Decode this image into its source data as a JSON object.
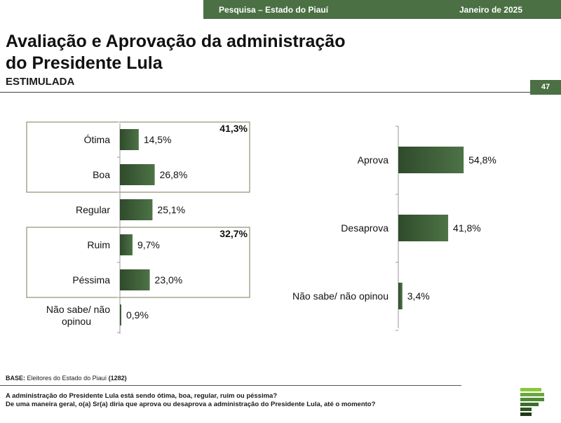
{
  "header": {
    "survey": "Pesquisa – Estado do Piauí",
    "date": "Janeiro de 2025",
    "page_number": "47"
  },
  "title_line1": "Avaliação e Aprovação da administração",
  "title_line2": "do Presidente Lula",
  "subtitle": "ESTIMULADA",
  "footer": {
    "base_label": "BASE:",
    "base_text": " Eleitores do Estado do Piauí ",
    "base_n": "(1282)",
    "question1": "A administração do Presidente Lula está sendo ótima, boa, regular, ruim ou péssima?",
    "question2": "De uma maneira geral, o(a) Sr(a) diria que aprova ou desaprova a administração do Presidente Lula, até o momento?"
  },
  "chart_data": [
    {
      "type": "bar",
      "orientation": "horizontal",
      "categories": [
        "Ótima",
        "Boa",
        "Regular",
        "Ruim",
        "Péssima",
        "Não sabe/ não opinou"
      ],
      "values": [
        14.5,
        26.8,
        25.1,
        9.7,
        23.0,
        0.9
      ],
      "value_labels": [
        "14,5%",
        "26,8%",
        "25,1%",
        "9,7%",
        "23,0%",
        "0,9%"
      ],
      "groups": [
        {
          "categories": [
            "Ótima",
            "Boa"
          ],
          "total": 41.3,
          "total_label": "41,3%"
        },
        {
          "categories": [
            "Ruim",
            "Péssima"
          ],
          "total": 32.7,
          "total_label": "32,7%"
        }
      ],
      "bar_color": "#4d7346"
    },
    {
      "type": "bar",
      "orientation": "horizontal",
      "categories": [
        "Aprova",
        "Desaprova",
        "Não sabe/ não opinou"
      ],
      "values": [
        54.8,
        41.8,
        3.4
      ],
      "value_labels": [
        "54,8%",
        "41,8%",
        "3,4%"
      ],
      "bar_color": "#4d7346"
    }
  ]
}
